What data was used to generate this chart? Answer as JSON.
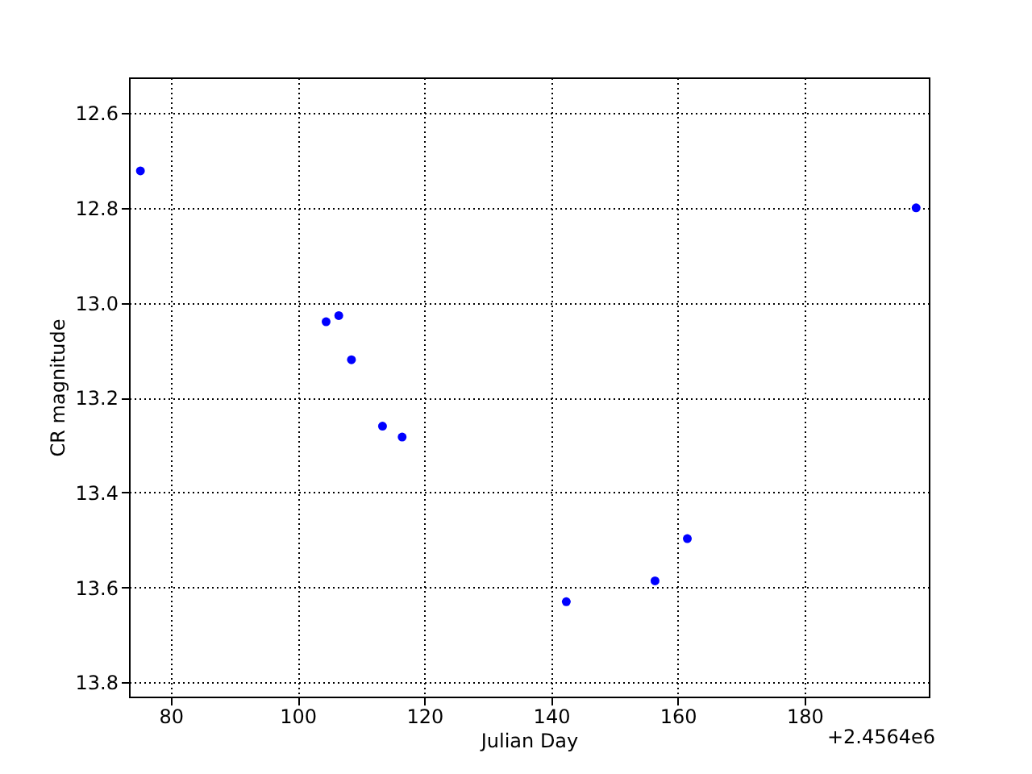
{
  "chart_data": {
    "type": "scatter",
    "xlabel": "Julian Day",
    "ylabel": "CR magnitude",
    "annotations": [
      "+2.4564e6"
    ],
    "x": [
      75.2,
      104.5,
      106.5,
      108.5,
      113.4,
      116.5,
      142.4,
      156.4,
      161.5,
      197.6
    ],
    "series": [
      {
        "color": "#0000ff",
        "values": [
          12.722,
          13.04,
          13.027,
          13.12,
          13.26,
          13.283,
          13.63,
          13.586,
          13.497,
          12.8
        ]
      }
    ],
    "xlim": [
      73.4,
      199.6
    ],
    "xticks": [
      80,
      100,
      120,
      140,
      160,
      180
    ],
    "ylim": [
      13.83,
      12.525
    ],
    "yticks": [
      {
        "value": 12.6,
        "label": "12.6"
      },
      {
        "value": 12.8,
        "label": "12.8"
      },
      {
        "value": 13.0,
        "label": "13.0"
      },
      {
        "value": 13.2,
        "label": "13.2"
      },
      {
        "value": 13.4,
        "label": "13.4"
      },
      {
        "value": 13.6,
        "label": "13.6"
      },
      {
        "value": 13.8,
        "label": "13.8"
      }
    ],
    "grid": true,
    "marker": "circle"
  }
}
